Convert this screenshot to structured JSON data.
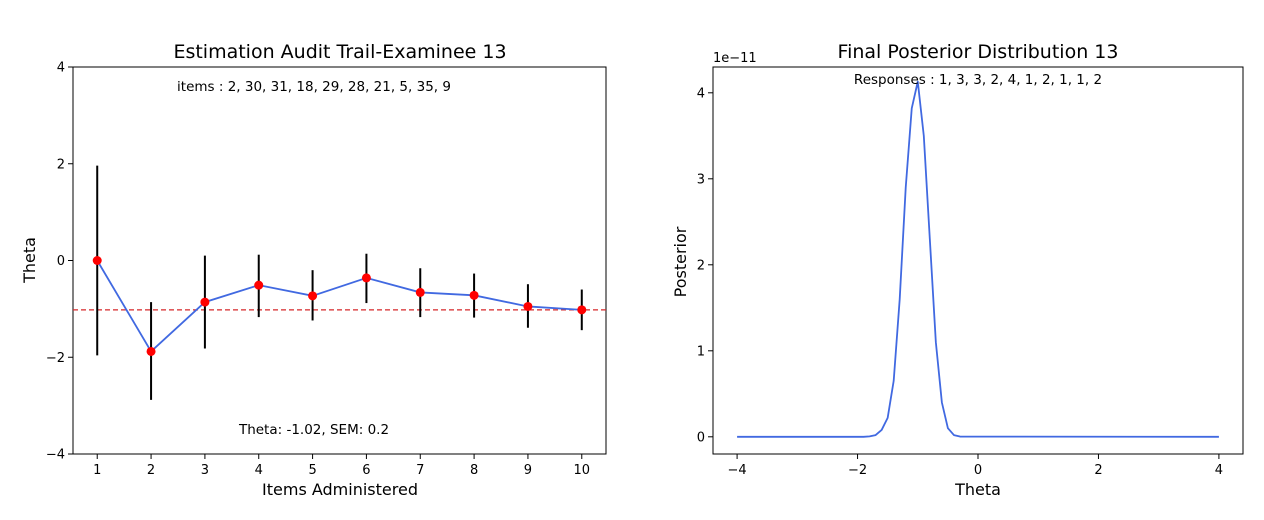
{
  "chart_data": [
    {
      "type": "line",
      "title": "Estimation Audit Trail-Examinee 13",
      "xlabel": "Items Administered",
      "ylabel": "Theta",
      "xlim": [
        0.55,
        10.45
      ],
      "ylim": [
        -4,
        4
      ],
      "x_ticks": [
        "1",
        "2",
        "3",
        "4",
        "5",
        "6",
        "7",
        "8",
        "9",
        "10"
      ],
      "y_ticks": [
        "4",
        "2",
        "0",
        "−2",
        "−4"
      ],
      "y_tick_values": [
        4,
        2,
        0,
        -2,
        -4
      ],
      "x": [
        1,
        2,
        3,
        4,
        5,
        6,
        7,
        8,
        9,
        10
      ],
      "theta": [
        0.0,
        -1.88,
        -0.86,
        -0.51,
        -0.73,
        -0.36,
        -0.66,
        -0.72,
        -0.95,
        -1.02
      ],
      "error_bars": [
        [
          -1.96,
          1.96
        ],
        [
          -2.88,
          -0.86
        ],
        [
          -1.82,
          0.1
        ],
        [
          -1.17,
          0.12
        ],
        [
          -1.24,
          -0.2
        ],
        [
          -0.88,
          0.14
        ],
        [
          -1.17,
          -0.16
        ],
        [
          -1.18,
          -0.27
        ],
        [
          -1.39,
          -0.49
        ],
        [
          -1.44,
          -0.6
        ]
      ],
      "reference_line": -1.02,
      "annotation_top": "items : 2, 30, 31, 18, 29, 28, 21, 5, 35, 9",
      "annotation_bottom": "Theta: -1.02, SEM: 0.2",
      "colors": {
        "line": "#4169e1",
        "marker": "#ff0000",
        "errorbar": "#000000",
        "reference": "#d62728"
      }
    },
    {
      "type": "line",
      "title": "Final Posterior Distribution 13",
      "xlabel": "Theta",
      "ylabel": "Posterior",
      "offset_text": "1e−11",
      "xlim": [
        -4.4,
        4.4
      ],
      "ylim": [
        -0.2,
        4.3
      ],
      "x_ticks": [
        "−4",
        "−2",
        "0",
        "2",
        "4"
      ],
      "x_tick_values": [
        -4,
        -2,
        0,
        2,
        4
      ],
      "y_ticks": [
        "0",
        "1",
        "2",
        "3",
        "4"
      ],
      "y_tick_values": [
        0,
        1,
        2,
        3,
        4
      ],
      "annotation_top": "Responses : 1, 3, 3, 2, 4, 1, 2, 1, 1, 2",
      "x": [
        -4,
        -1.9,
        -1.8,
        -1.7,
        -1.6,
        -1.5,
        -1.4,
        -1.3,
        -1.2,
        -1.1,
        -1.0,
        -0.9,
        -0.8,
        -0.7,
        -0.6,
        -0.5,
        -0.4,
        -0.3,
        4
      ],
      "y": [
        0,
        0,
        0.005,
        0.02,
        0.08,
        0.22,
        0.65,
        1.6,
        2.9,
        3.82,
        4.13,
        3.5,
        2.3,
        1.1,
        0.4,
        0.1,
        0.02,
        0.003,
        0
      ],
      "colors": {
        "line": "#4169e1"
      }
    }
  ]
}
